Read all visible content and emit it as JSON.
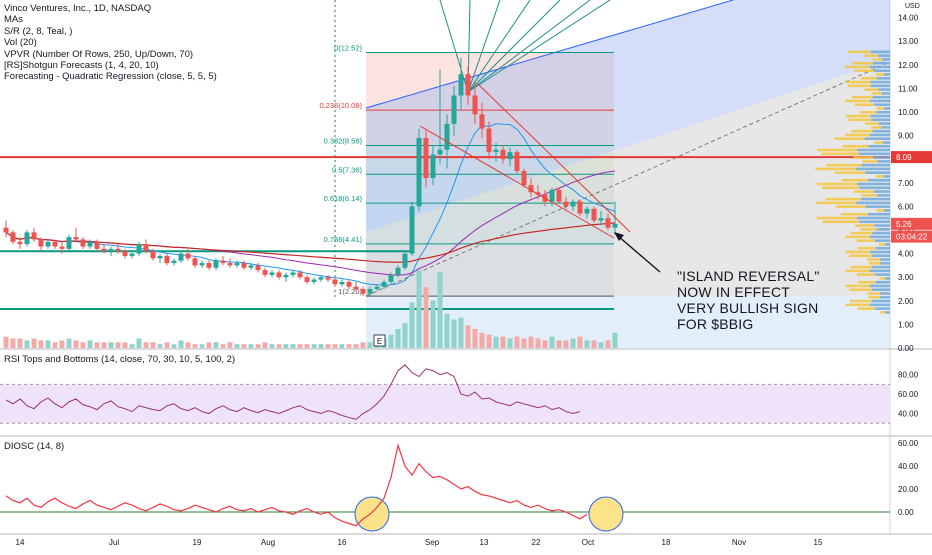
{
  "legend": {
    "title": "Vinco Ventures, Inc., 1D, NASDAQ",
    "indicators": [
      "MAs",
      "S/R (2, 8, Teal, )",
      "Vol (20)",
      "VPVR (Number Of Rows, 250, Up/Down, 70)",
      "[RS]Shotgun Forecasts (1, 4, 20, 10)",
      "Forecasting - Quadratic Regression (close, 5, 5, 5)"
    ]
  },
  "currency": "USD",
  "annotation": {
    "lines": [
      "\"ISLAND REVERSAL\"",
      "NOW IN EFFECT",
      "VERY BULLISH SIGN",
      "FOR $BBIG"
    ]
  },
  "earnings_marker": "E",
  "rsi_title": "RSI Tops and Bottoms (14, close, 70, 30, 10, 5, 100, 2)",
  "diosc_title": "DIOSC (14, 8)",
  "colors": {
    "up": "#26a69a",
    "down": "#ef5350",
    "resistance": "#e53935",
    "support": "#089981",
    "channel": "#2962ff",
    "rsi_line": "#9c2f6b",
    "diosc_line": "#f23645",
    "highlight": "#fbe38a"
  },
  "chart_data": [
    {
      "type": "candlestick",
      "pane": "price",
      "ylim": [
        0,
        14
      ],
      "yticks": [
        "0.00",
        "1.00",
        "2.00",
        "3.00",
        "4.00",
        "5.00",
        "6.00",
        "7.00",
        "8.00",
        "9.00",
        "10.00",
        "11.00",
        "12.00",
        "13.00",
        "14.00"
      ],
      "x_ticks": [
        "14",
        "Jul",
        "19",
        "Aug",
        "16",
        "Sep",
        "13",
        "22",
        "Oct",
        "18",
        "Nov",
        "15"
      ],
      "price_labels": [
        {
          "text": "8.09",
          "value": 8.09,
          "color": "#e53935"
        },
        {
          "text": "5.26",
          "value": 5.26,
          "color": "#ef5350"
        },
        {
          "text": "03:04:22",
          "value": 4.72,
          "color": "#ef5350"
        }
      ],
      "fibonacci": [
        {
          "label": "0(12.52)",
          "value": 12.52
        },
        {
          "label": "0.236(10.08)",
          "value": 10.08
        },
        {
          "label": "0.382(8.58)",
          "value": 8.58
        },
        {
          "label": "0.5(7.36)",
          "value": 7.36
        },
        {
          "label": "0.618(6.14)",
          "value": 6.14
        },
        {
          "label": "0.786(4.41)",
          "value": 4.41
        },
        {
          "label": "1(2.20)",
          "value": 2.2
        }
      ],
      "horizontal_levels": [
        8.09,
        4.1,
        1.65
      ],
      "candles": [
        [
          5.1,
          5.4,
          4.7,
          4.9
        ],
        [
          4.9,
          5.0,
          4.4,
          4.5
        ],
        [
          4.5,
          4.7,
          4.2,
          4.4
        ],
        [
          4.4,
          5.0,
          4.3,
          4.9
        ],
        [
          4.9,
          5.1,
          4.5,
          4.6
        ],
        [
          4.6,
          4.7,
          4.1,
          4.3
        ],
        [
          4.3,
          4.6,
          4.2,
          4.5
        ],
        [
          4.5,
          4.6,
          4.2,
          4.3
        ],
        [
          4.3,
          4.5,
          4.0,
          4.2
        ],
        [
          4.2,
          4.8,
          4.1,
          4.7
        ],
        [
          4.7,
          5.1,
          4.5,
          4.6
        ],
        [
          4.6,
          4.7,
          4.2,
          4.3
        ],
        [
          4.3,
          4.6,
          4.2,
          4.5
        ],
        [
          4.5,
          4.6,
          4.1,
          4.2
        ],
        [
          4.2,
          4.4,
          4.0,
          4.1
        ],
        [
          4.1,
          4.3,
          3.9,
          4.2
        ],
        [
          4.2,
          4.4,
          4.0,
          4.1
        ],
        [
          4.1,
          4.2,
          3.8,
          3.9
        ],
        [
          3.9,
          4.1,
          3.8,
          4.0
        ],
        [
          4.0,
          4.5,
          3.9,
          4.4
        ],
        [
          4.4,
          4.6,
          4.0,
          4.1
        ],
        [
          4.1,
          4.2,
          3.7,
          3.8
        ],
        [
          3.8,
          4.0,
          3.6,
          3.9
        ],
        [
          3.9,
          4.0,
          3.5,
          3.6
        ],
        [
          3.6,
          3.8,
          3.5,
          3.7
        ],
        [
          3.7,
          4.1,
          3.6,
          4.0
        ],
        [
          4.0,
          4.2,
          3.7,
          3.8
        ],
        [
          3.8,
          3.9,
          3.4,
          3.5
        ],
        [
          3.5,
          3.7,
          3.4,
          3.6
        ],
        [
          3.6,
          3.7,
          3.3,
          3.4
        ],
        [
          3.4,
          3.8,
          3.3,
          3.7
        ],
        [
          3.7,
          3.9,
          3.5,
          3.6
        ],
        [
          3.6,
          3.8,
          3.4,
          3.5
        ],
        [
          3.5,
          3.7,
          3.4,
          3.6
        ],
        [
          3.6,
          3.7,
          3.3,
          3.4
        ],
        [
          3.4,
          3.6,
          3.3,
          3.5
        ],
        [
          3.5,
          3.6,
          3.2,
          3.3
        ],
        [
          3.3,
          3.4,
          3.0,
          3.1
        ],
        [
          3.1,
          3.3,
          3.0,
          3.2
        ],
        [
          3.2,
          3.3,
          2.9,
          3.0
        ],
        [
          3.0,
          3.2,
          2.8,
          3.1
        ],
        [
          3.1,
          3.3,
          3.0,
          3.2
        ],
        [
          3.2,
          3.3,
          2.9,
          3.0
        ],
        [
          3.0,
          3.1,
          2.7,
          2.8
        ],
        [
          2.8,
          3.0,
          2.7,
          2.9
        ],
        [
          2.9,
          3.1,
          2.8,
          3.0
        ],
        [
          3.0,
          3.1,
          2.8,
          2.9
        ],
        [
          2.9,
          3.0,
          2.6,
          2.7
        ],
        [
          2.7,
          2.9,
          2.6,
          2.8
        ],
        [
          2.8,
          2.9,
          2.5,
          2.6
        ],
        [
          2.6,
          2.8,
          2.4,
          2.5
        ],
        [
          2.5,
          2.6,
          2.2,
          2.3
        ],
        [
          2.3,
          2.6,
          2.2,
          2.5
        ],
        [
          2.5,
          2.7,
          2.4,
          2.6
        ],
        [
          2.6,
          2.9,
          2.5,
          2.8
        ],
        [
          2.8,
          3.2,
          2.7,
          3.1
        ],
        [
          3.1,
          3.5,
          3.0,
          3.4
        ],
        [
          3.4,
          4.1,
          3.3,
          4.0
        ],
        [
          4.0,
          6.2,
          3.9,
          6.0
        ],
        [
          6.0,
          9.3,
          5.8,
          8.9
        ],
        [
          8.9,
          9.2,
          6.8,
          7.2
        ],
        [
          7.2,
          8.6,
          6.9,
          8.2
        ],
        [
          8.2,
          11.8,
          7.8,
          8.4
        ],
        [
          8.4,
          9.9,
          7.6,
          9.5
        ],
        [
          9.5,
          11.1,
          9.0,
          10.7
        ],
        [
          10.7,
          12.3,
          10.1,
          11.6
        ],
        [
          11.6,
          11.9,
          10.3,
          10.7
        ],
        [
          10.7,
          11.3,
          9.5,
          9.9
        ],
        [
          9.9,
          10.4,
          8.9,
          9.3
        ],
        [
          9.3,
          9.6,
          8.0,
          8.3
        ],
        [
          8.3,
          8.7,
          7.9,
          8.4
        ],
        [
          8.4,
          8.6,
          7.8,
          8.0
        ],
        [
          8.0,
          8.5,
          7.7,
          8.3
        ],
        [
          8.3,
          8.4,
          7.4,
          7.5
        ],
        [
          7.5,
          7.6,
          6.8,
          6.9
        ],
        [
          6.9,
          7.2,
          6.4,
          6.6
        ],
        [
          6.6,
          6.9,
          6.3,
          6.5
        ],
        [
          6.5,
          6.7,
          6.0,
          6.2
        ],
        [
          6.2,
          6.8,
          6.0,
          6.7
        ],
        [
          6.7,
          6.8,
          6.1,
          6.2
        ],
        [
          6.2,
          6.4,
          5.9,
          6.0
        ],
        [
          6.0,
          6.3,
          5.8,
          6.2
        ],
        [
          6.2,
          6.3,
          5.6,
          5.7
        ],
        [
          5.7,
          6.0,
          5.5,
          5.9
        ],
        [
          5.9,
          6.0,
          5.3,
          5.4
        ],
        [
          5.4,
          5.8,
          5.2,
          5.5
        ],
        [
          5.5,
          5.7,
          5.0,
          5.1
        ],
        [
          5.1,
          6.2,
          4.8,
          5.26
        ]
      ],
      "volume": [
        0.6,
        0.5,
        0.5,
        0.4,
        0.5,
        0.4,
        0.4,
        0.3,
        0.4,
        0.5,
        0.4,
        0.3,
        0.4,
        0.3,
        0.3,
        0.3,
        0.3,
        0.3,
        0.2,
        0.5,
        0.3,
        0.3,
        0.2,
        0.3,
        0.2,
        0.4,
        0.3,
        0.2,
        0.2,
        0.3,
        0.3,
        0.2,
        0.3,
        0.2,
        0.2,
        0.2,
        0.2,
        0.3,
        0.2,
        0.2,
        0.2,
        0.2,
        0.2,
        0.2,
        0.2,
        0.2,
        0.2,
        0.2,
        0.2,
        0.2,
        0.2,
        0.3,
        0.3,
        0.4,
        0.5,
        0.7,
        1.0,
        1.3,
        2.4,
        4.1,
        3.2,
        2.5,
        4.0,
        1.8,
        1.5,
        1.6,
        1.2,
        1.0,
        0.8,
        0.7,
        0.6,
        0.6,
        0.5,
        0.6,
        0.5,
        0.6,
        0.5,
        0.4,
        0.6,
        0.4,
        0.4,
        0.5,
        0.6,
        0.4,
        0.4,
        0.3,
        0.4,
        0.8
      ]
    },
    {
      "type": "line",
      "pane": "rsi",
      "yticks": [
        "40.00",
        "60.00",
        "80.00"
      ],
      "levels": [
        70,
        30
      ],
      "values": [
        54,
        50,
        55,
        48,
        45,
        52,
        56,
        50,
        46,
        52,
        55,
        49,
        47,
        44,
        50,
        53,
        47,
        45,
        42,
        48,
        46,
        44,
        43,
        48,
        50,
        45,
        43,
        46,
        42,
        40,
        45,
        48,
        44,
        42,
        46,
        43,
        41,
        44,
        42,
        40,
        43,
        46,
        48,
        44,
        42,
        40,
        43,
        41,
        38,
        36,
        34,
        40,
        44,
        50,
        58,
        70,
        84,
        90,
        82,
        78,
        86,
        84,
        80,
        82,
        78,
        60,
        58,
        62,
        55,
        56,
        52,
        50,
        48,
        52,
        50,
        48,
        46,
        48,
        44,
        46,
        42,
        40,
        42
      ]
    },
    {
      "type": "line",
      "pane": "diosc",
      "yticks": [
        "0.00",
        "20.00",
        "40.00",
        "60.00"
      ],
      "values": [
        14,
        10,
        8,
        12,
        6,
        4,
        9,
        12,
        8,
        5,
        3,
        7,
        10,
        6,
        4,
        2,
        5,
        8,
        6,
        3,
        1,
        4,
        7,
        5,
        2,
        1,
        3,
        6,
        4,
        2,
        0,
        3,
        5,
        2,
        1,
        3,
        0,
        2,
        4,
        1,
        0,
        -2,
        1,
        3,
        0,
        -2,
        0,
        -5,
        -8,
        -10,
        -12,
        -6,
        -2,
        4,
        12,
        30,
        58,
        40,
        32,
        42,
        35,
        30,
        31,
        28,
        24,
        20,
        22,
        18,
        15,
        14,
        12,
        10,
        8,
        10,
        6,
        4,
        6,
        3,
        1,
        2,
        0,
        -3,
        -6,
        -2
      ]
    }
  ]
}
